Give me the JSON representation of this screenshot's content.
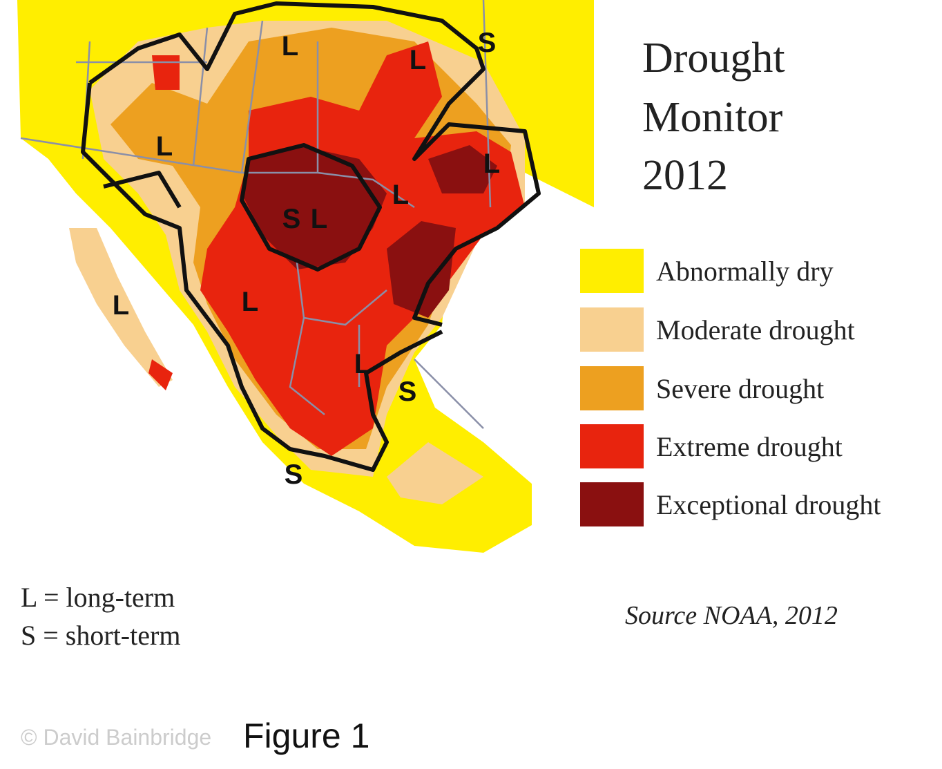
{
  "title": [
    "Drought",
    "Monitor",
    "2012"
  ],
  "legend": [
    {
      "label": "Abnormally dry",
      "color": "#ffee00"
    },
    {
      "label": "Moderate drought",
      "color": "#f8d090"
    },
    {
      "label": "Severe drought",
      "color": "#eda020"
    },
    {
      "label": "Extreme drought",
      "color": "#e8240e"
    },
    {
      "label": "Exceptional drought",
      "color": "#8a1010"
    }
  ],
  "map": {
    "labels": [
      "L",
      "L",
      "S",
      "L",
      "L",
      "L",
      "S",
      "L",
      "L",
      "L",
      "L",
      "S",
      "S"
    ]
  },
  "key": [
    "L = long-term",
    "S = short-term"
  ],
  "source": "Source NOAA, 2012",
  "watermark": "© David Bainbridge",
  "caption": "Figure 1"
}
